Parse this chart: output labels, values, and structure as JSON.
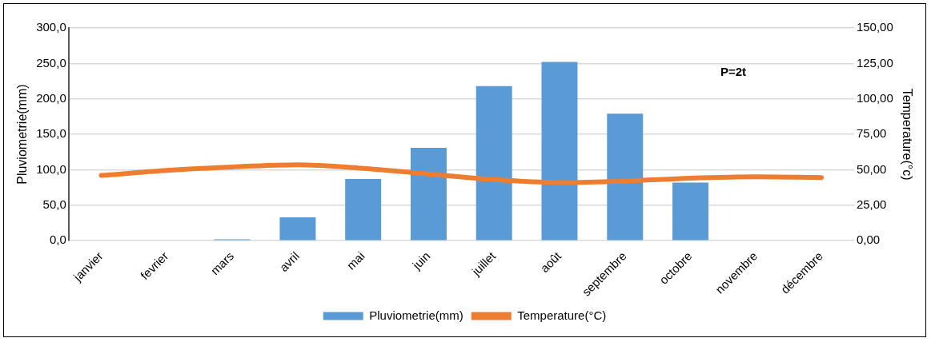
{
  "chart_data": {
    "type": "bar",
    "categories": [
      "janvier",
      "fevrier",
      "mars",
      "avril",
      "mai",
      "juin",
      "juillet",
      "août",
      "septembre",
      "octobre",
      "novembre",
      "décembre"
    ],
    "series": [
      {
        "name": "Pluviometrie(mm)",
        "color": "#5b9bd5",
        "values": [
          0,
          0,
          2,
          33,
          87,
          131,
          218,
          252,
          179,
          82,
          0,
          0
        ]
      },
      {
        "name": "Temperature(°C)",
        "type": "line",
        "axis": "y2",
        "color": "#ed7d31",
        "values": [
          46,
          49.5,
          52,
          53.5,
          51,
          47,
          43,
          41,
          42,
          44,
          45,
          44.5
        ]
      }
    ],
    "ylabel": "Pluviometrie(mm)",
    "y2label": "Temperature(°c)",
    "ylim": [
      0,
      300
    ],
    "yticks": [
      {
        "value": 0,
        "label": "0,0"
      },
      {
        "value": 50,
        "label": "50,0"
      },
      {
        "value": 100,
        "label": "100,0"
      },
      {
        "value": 150,
        "label": "150,0"
      },
      {
        "value": 200,
        "label": "200,0"
      },
      {
        "value": 250,
        "label": "250,0"
      },
      {
        "value": 300,
        "label": "300,0"
      }
    ],
    "y2lim": [
      0,
      150
    ],
    "y2ticks": [
      {
        "value": 0,
        "label": "0,00"
      },
      {
        "value": 25,
        "label": "25,00"
      },
      {
        "value": 50,
        "label": "50,00"
      },
      {
        "value": 75,
        "label": "75,00"
      },
      {
        "value": 100,
        "label": "100,00"
      },
      {
        "value": 125,
        "label": "125,00"
      },
      {
        "value": 150,
        "label": "150,00"
      }
    ],
    "annotations": [
      "P=2t"
    ],
    "grid": "y",
    "legend": "bottom"
  }
}
